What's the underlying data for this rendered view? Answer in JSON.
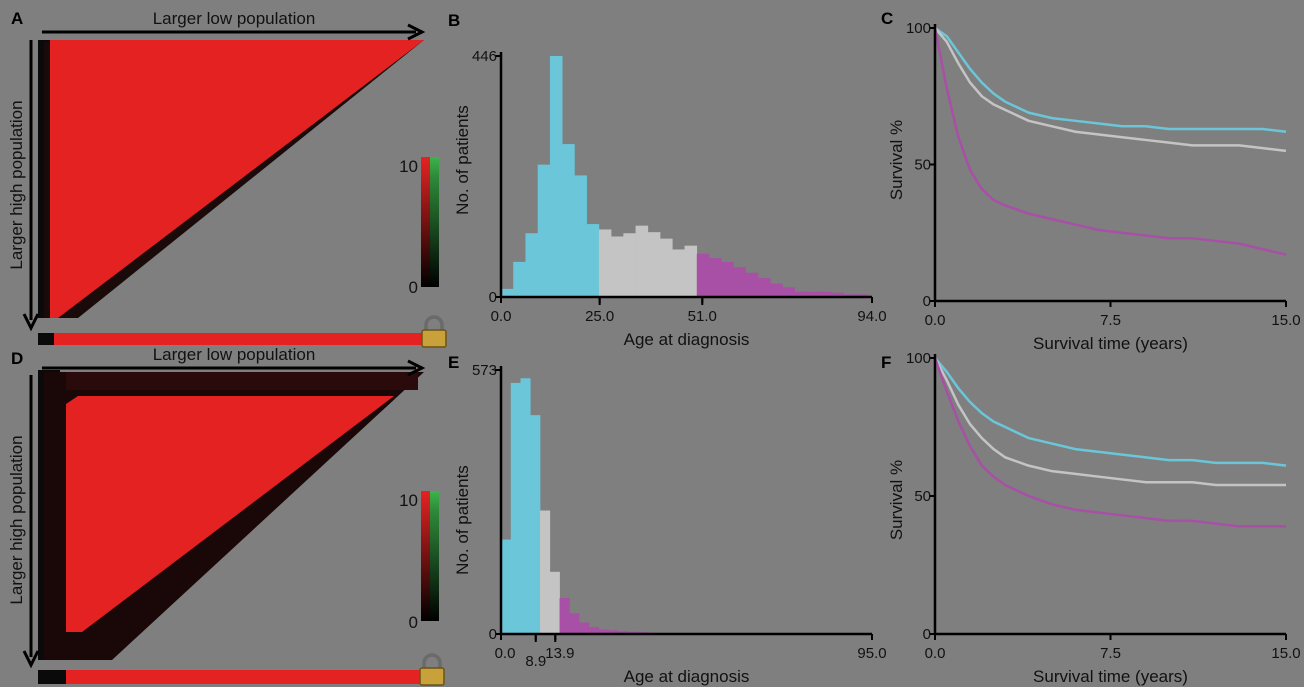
{
  "colors": {
    "background": "#7f7f7f",
    "heat_red": "#e52222",
    "heat_green": "#3bb54a",
    "cyan": "#6ac6d8",
    "grey": "#c4c4c4",
    "magenta": "#a84fa6",
    "black": "#000000"
  },
  "icons": {
    "lock": "padlock-icon"
  },
  "panels": {
    "A": {
      "letter": "A",
      "x_arrow_label": "Larger low population",
      "y_arrow_label": "Larger high population",
      "colorbar_max": "10",
      "colorbar_min": "0"
    },
    "D": {
      "letter": "D",
      "x_arrow_label": "Larger low population",
      "y_arrow_label": "Larger high population",
      "colorbar_max": "10",
      "colorbar_min": "0"
    }
  },
  "chart_data": [
    {
      "panel": "B",
      "type": "bar",
      "letter": "B",
      "xlabel": "Age at diagnosis",
      "ylabel": "No. of patients",
      "xlim": [
        0,
        94
      ],
      "ylim": [
        0,
        446
      ],
      "x_ticks": [
        {
          "value": 0,
          "label": "0.0"
        },
        {
          "value": 25,
          "label": "25.0"
        },
        {
          "value": 51,
          "label": "51.0"
        },
        {
          "value": 94,
          "label": "94.0"
        }
      ],
      "y_ticks": [
        {
          "value": 0,
          "label": "0"
        },
        {
          "value": 446,
          "label": "446"
        }
      ],
      "cutpoints": [
        25,
        51
      ],
      "bin_width": 3.1,
      "values": [
        15,
        65,
        118,
        245,
        446,
        283,
        225,
        135,
        125,
        112,
        118,
        132,
        120,
        108,
        88,
        95,
        80,
        72,
        65,
        55,
        45,
        35,
        25,
        18,
        10,
        10,
        10,
        8,
        5,
        5
      ]
    },
    {
      "panel": "C",
      "type": "line",
      "letter": "C",
      "xlabel": "Survival time (years)",
      "ylabel": "Survival %",
      "xlim": [
        0,
        15
      ],
      "ylim": [
        0,
        100
      ],
      "x_ticks": [
        {
          "value": 0,
          "label": "0.0"
        },
        {
          "value": 7.5,
          "label": "7.5"
        },
        {
          "value": 15,
          "label": "15.0"
        }
      ],
      "y_ticks": [
        {
          "value": 0,
          "label": "0"
        },
        {
          "value": 50,
          "label": "50"
        },
        {
          "value": 100,
          "label": "100"
        }
      ],
      "series": [
        {
          "color_key": "cyan",
          "x": [
            0,
            0.5,
            1,
            1.5,
            2,
            2.5,
            3,
            4,
            5,
            6,
            7,
            8,
            9,
            10,
            11,
            12,
            13,
            14,
            15
          ],
          "y": [
            100,
            97,
            91,
            85,
            80,
            76,
            73,
            69,
            67,
            66,
            65,
            64,
            64,
            63,
            63,
            63,
            63,
            63,
            62
          ]
        },
        {
          "color_key": "grey",
          "x": [
            0,
            0.5,
            1,
            1.5,
            2,
            2.5,
            3,
            4,
            5,
            6,
            7,
            8,
            9,
            10,
            11,
            12,
            13,
            14,
            15
          ],
          "y": [
            100,
            95,
            87,
            80,
            75,
            72,
            70,
            66,
            64,
            62,
            61,
            60,
            59,
            58,
            57,
            57,
            57,
            56,
            55
          ]
        },
        {
          "color_key": "magenta",
          "x": [
            0,
            0.5,
            1,
            1.5,
            2,
            2.5,
            3,
            4,
            5,
            6,
            7,
            8,
            9,
            10,
            11,
            12,
            13,
            14,
            15
          ],
          "y": [
            100,
            78,
            60,
            48,
            41,
            37,
            35,
            32,
            30,
            28,
            26,
            25,
            24,
            23,
            23,
            22,
            21,
            19,
            17
          ]
        }
      ]
    },
    {
      "panel": "E",
      "type": "bar",
      "letter": "E",
      "xlabel": "Age at diagnosis",
      "ylabel": "No. of patients",
      "xlim": [
        0,
        95
      ],
      "ylim": [
        0,
        573
      ],
      "x_ticks": [
        {
          "value": 0,
          "label": "0.0"
        },
        {
          "value": 8.9,
          "label": "8.9"
        },
        {
          "value": 13.9,
          "label": "13.9"
        },
        {
          "value": 95,
          "label": "95.0"
        }
      ],
      "y_ticks": [
        {
          "value": 0,
          "label": "0"
        },
        {
          "value": 573,
          "label": "573"
        }
      ],
      "cutpoints": [
        8.9,
        13.9
      ],
      "bin_width": 2.5,
      "values": [
        205,
        545,
        555,
        475,
        268,
        135,
        78,
        45,
        25,
        15,
        10,
        8,
        6,
        5,
        4,
        3,
        2,
        2,
        1,
        1,
        1,
        1,
        1
      ]
    },
    {
      "panel": "F",
      "type": "line",
      "letter": "F",
      "xlabel": "Survival time (years)",
      "ylabel": "Survival %",
      "xlim": [
        0,
        15
      ],
      "ylim": [
        0,
        100
      ],
      "x_ticks": [
        {
          "value": 0,
          "label": "0.0"
        },
        {
          "value": 7.5,
          "label": "7.5"
        },
        {
          "value": 15,
          "label": "15.0"
        }
      ],
      "y_ticks": [
        {
          "value": 0,
          "label": "0"
        },
        {
          "value": 50,
          "label": "50"
        },
        {
          "value": 100,
          "label": "100"
        }
      ],
      "series": [
        {
          "color_key": "cyan",
          "x": [
            0,
            0.5,
            1,
            1.5,
            2,
            2.5,
            3,
            4,
            5,
            6,
            7,
            8,
            9,
            10,
            11,
            12,
            13,
            14,
            15
          ],
          "y": [
            100,
            95,
            89,
            84,
            80,
            77,
            75,
            71,
            69,
            67,
            66,
            65,
            64,
            63,
            63,
            62,
            62,
            62,
            61
          ]
        },
        {
          "color_key": "grey",
          "x": [
            0,
            0.5,
            1,
            1.5,
            2,
            2.5,
            3,
            4,
            5,
            6,
            7,
            8,
            9,
            10,
            11,
            12,
            13,
            14,
            15
          ],
          "y": [
            100,
            92,
            83,
            76,
            71,
            67,
            64,
            61,
            59,
            58,
            57,
            56,
            55,
            55,
            55,
            54,
            54,
            54,
            54
          ]
        },
        {
          "color_key": "magenta",
          "x": [
            0,
            0.5,
            1,
            1.5,
            2,
            2.5,
            3,
            4,
            5,
            6,
            7,
            8,
            9,
            10,
            11,
            12,
            13,
            14,
            15
          ],
          "y": [
            100,
            88,
            77,
            68,
            61,
            57,
            54,
            50,
            47,
            45,
            44,
            43,
            42,
            41,
            41,
            40,
            39,
            39,
            39
          ]
        }
      ]
    }
  ]
}
